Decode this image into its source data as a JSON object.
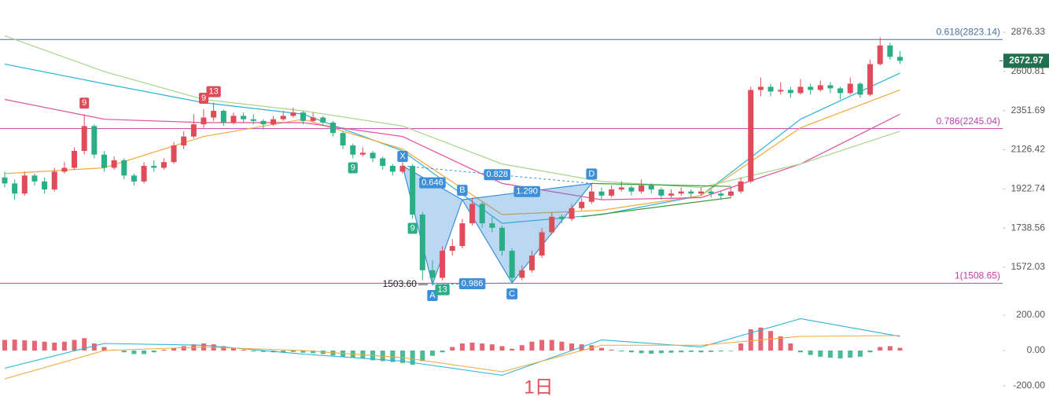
{
  "watermark": "1日",
  "chart_data": [
    {
      "type": "candlestick",
      "log_scale": true,
      "ylim": [
        1421,
        3125
      ],
      "yticks": [
        2876.33,
        2600.81,
        2351.69,
        2126.42,
        1922.74,
        1738.56,
        1572.03
      ],
      "up_color": "#e04b5a",
      "down_color": "#2aae86",
      "candles": [
        [
          1980,
          2010,
          1930,
          1950
        ],
        [
          1950,
          1970,
          1870,
          1900
        ],
        [
          1900,
          2010,
          1890,
          1990
        ],
        [
          1990,
          2000,
          1940,
          1960
        ],
        [
          1960,
          1980,
          1900,
          1920
        ],
        [
          1920,
          2030,
          1910,
          2010
        ],
        [
          2010,
          2060,
          2000,
          2030
        ],
        [
          2030,
          2140,
          2020,
          2120
        ],
        [
          2120,
          2330,
          2100,
          2260
        ],
        [
          2260,
          2270,
          2080,
          2100
        ],
        [
          2100,
          2120,
          2010,
          2030
        ],
        [
          2030,
          2090,
          2020,
          2070
        ],
        [
          2070,
          2080,
          1970,
          1990
        ],
        [
          1990,
          2000,
          1940,
          1960
        ],
        [
          1960,
          2060,
          1950,
          2040
        ],
        [
          2040,
          2070,
          2010,
          2030
        ],
        [
          2030,
          2080,
          2020,
          2060
        ],
        [
          2060,
          2170,
          2050,
          2150
        ],
        [
          2150,
          2230,
          2130,
          2200
        ],
        [
          2200,
          2330,
          2190,
          2270
        ],
        [
          2270,
          2360,
          2250,
          2310
        ],
        [
          2310,
          2400,
          2290,
          2350
        ],
        [
          2350,
          2360,
          2260,
          2280
        ],
        [
          2280,
          2340,
          2270,
          2320
        ],
        [
          2320,
          2340,
          2280,
          2300
        ],
        [
          2300,
          2330,
          2270,
          2290
        ],
        [
          2290,
          2300,
          2240,
          2270
        ],
        [
          2270,
          2320,
          2260,
          2300
        ],
        [
          2300,
          2350,
          2290,
          2320
        ],
        [
          2320,
          2370,
          2310,
          2340
        ],
        [
          2340,
          2350,
          2270,
          2290
        ],
        [
          2290,
          2340,
          2280,
          2310
        ],
        [
          2310,
          2320,
          2260,
          2280
        ],
        [
          2280,
          2290,
          2200,
          2220
        ],
        [
          2220,
          2230,
          2130,
          2150
        ],
        [
          2150,
          2160,
          2080,
          2100
        ],
        [
          2100,
          2140,
          2090,
          2110
        ],
        [
          2110,
          2120,
          2060,
          2080
        ],
        [
          2080,
          2090,
          2020,
          2040
        ],
        [
          2040,
          2050,
          1990,
          2010
        ],
        [
          2010,
          2060,
          2000,
          2040
        ],
        [
          2040,
          2050,
          1780,
          1800
        ],
        [
          1800,
          1810,
          1520,
          1560
        ],
        [
          1560,
          1600,
          1503.6,
          1530
        ],
        [
          1530,
          1660,
          1520,
          1640
        ],
        [
          1640,
          1690,
          1620,
          1660
        ],
        [
          1660,
          1780,
          1650,
          1760
        ],
        [
          1760,
          1880,
          1750,
          1850
        ],
        [
          1850,
          1860,
          1740,
          1760
        ],
        [
          1760,
          1790,
          1720,
          1740
        ],
        [
          1740,
          1750,
          1620,
          1640
        ],
        [
          1640,
          1650,
          1510,
          1530
        ],
        [
          1530,
          1580,
          1520,
          1560
        ],
        [
          1560,
          1640,
          1550,
          1620
        ],
        [
          1620,
          1740,
          1610,
          1720
        ],
        [
          1720,
          1810,
          1710,
          1790
        ],
        [
          1790,
          1800,
          1760,
          1780
        ],
        [
          1780,
          1850,
          1770,
          1830
        ],
        [
          1830,
          1880,
          1820,
          1860
        ],
        [
          1860,
          1950,
          1850,
          1910
        ],
        [
          1910,
          1930,
          1870,
          1890
        ],
        [
          1890,
          1940,
          1880,
          1920
        ],
        [
          1920,
          1960,
          1910,
          1930
        ],
        [
          1930,
          1940,
          1890,
          1910
        ],
        [
          1910,
          1970,
          1900,
          1940
        ],
        [
          1940,
          1950,
          1900,
          1920
        ],
        [
          1920,
          1930,
          1870,
          1890
        ],
        [
          1890,
          1920,
          1880,
          1900
        ],
        [
          1900,
          1930,
          1890,
          1910
        ],
        [
          1910,
          1920,
          1880,
          1900
        ],
        [
          1900,
          1930,
          1890,
          1910
        ],
        [
          1910,
          1920,
          1880,
          1900
        ],
        [
          1900,
          1910,
          1870,
          1890
        ],
        [
          1890,
          1930,
          1880,
          1910
        ],
        [
          1910,
          1980,
          1900,
          1960
        ],
        [
          1960,
          2500,
          1950,
          2480
        ],
        [
          2480,
          2560,
          2440,
          2500
        ],
        [
          2500,
          2520,
          2440,
          2470
        ],
        [
          2470,
          2530,
          2450,
          2480
        ],
        [
          2480,
          2500,
          2430,
          2460
        ],
        [
          2460,
          2550,
          2450,
          2500
        ],
        [
          2500,
          2520,
          2450,
          2480
        ],
        [
          2480,
          2540,
          2470,
          2510
        ],
        [
          2510,
          2530,
          2460,
          2490
        ],
        [
          2490,
          2500,
          2420,
          2460
        ],
        [
          2460,
          2560,
          2450,
          2520
        ],
        [
          2520,
          2530,
          2430,
          2450
        ],
        [
          2450,
          2680,
          2440,
          2650
        ],
        [
          2650,
          2840,
          2640,
          2780
        ],
        [
          2780,
          2800,
          2680,
          2700
        ],
        [
          2700,
          2740,
          2650,
          2672.97
        ]
      ],
      "moving_averages": {
        "x": [
          0,
          10,
          20,
          30,
          40,
          50,
          60,
          70,
          80,
          90
        ],
        "series": [
          {
            "color": "#2bb3d6",
            "values": [
              2650,
              2520,
              2400,
              2330,
              2120,
              1760,
              1800,
              1890,
              2300,
              2590
            ]
          },
          {
            "color": "#f2a93b",
            "values": [
              2000,
              2030,
              2200,
              2300,
              2130,
              1800,
              1820,
              1890,
              2250,
              2480
            ]
          },
          {
            "color": "#e0529c",
            "values": [
              2420,
              2300,
              2280,
              2280,
              2200,
              1950,
              1870,
              1880,
              2050,
              2330
            ]
          },
          {
            "color": "#a8d58c",
            "values": [
              2850,
              2600,
              2420,
              2350,
              2260,
              2050,
              1960,
              1930,
              2050,
              2230
            ]
          }
        ]
      },
      "trendlines": [
        {
          "color": "#3a9a3a",
          "x": [
            59,
            73
          ],
          "values": [
            1950,
            1935
          ]
        },
        {
          "color": "#3a9a3a",
          "x": [
            58,
            73
          ],
          "values": [
            1790,
            1880
          ]
        }
      ],
      "fib_levels": [
        {
          "value": 2823.14,
          "label": "0.618(2823.14)",
          "color": "#4a6fa5"
        },
        {
          "value": 2245.04,
          "label": "0.786(2245.04)",
          "color": "#c040b0"
        },
        {
          "value": 1508.65,
          "label": "1(1508.65)",
          "color": "#c040b0"
        }
      ],
      "td_counts": [
        {
          "index": 8,
          "label": "9",
          "position": "above",
          "color": "#e04b5a"
        },
        {
          "index": 20,
          "label": "9",
          "position": "above",
          "color": "#e04b5a"
        },
        {
          "index": 21,
          "label": "13",
          "position": "above",
          "color": "#e04b5a"
        },
        {
          "index": 35,
          "label": "9",
          "position": "below",
          "color": "#2aae86"
        },
        {
          "index": 41,
          "label": "9",
          "position": "below",
          "color": "#2aae86"
        },
        {
          "index": 44,
          "label": "13",
          "position": "below",
          "color": "#2aae86"
        }
      ],
      "harmonic": {
        "color": "#3d8fd9",
        "points": [
          {
            "label": "X",
            "index": 40,
            "price": 2040
          },
          {
            "label": "A",
            "index": 43,
            "price": 1503.6
          },
          {
            "label": "B",
            "index": 46,
            "price": 1870
          },
          {
            "label": "C",
            "index": 51,
            "price": 1510
          },
          {
            "label": "D",
            "index": 59,
            "price": 1950
          }
        ],
        "ratios": [
          "0.646",
          "0.828",
          "1.290",
          "0.986"
        ]
      },
      "low_label": {
        "index": 43,
        "value": 1503.6,
        "label": "1503.60"
      },
      "last_price": {
        "value": 2672.97,
        "label": "2672.97",
        "color": "#1f6f50"
      }
    },
    {
      "type": "macd",
      "ylim": [
        -329,
        240
      ],
      "yticks": [
        {
          "value": 200,
          "label": "200.00"
        },
        {
          "value": 0,
          "label": "0.00"
        },
        {
          "value": -200,
          "label": "-200.00"
        }
      ],
      "histogram": [
        60,
        62,
        58,
        55,
        50,
        45,
        50,
        60,
        70,
        40,
        20,
        5,
        -10,
        -20,
        -20,
        -10,
        5,
        15,
        25,
        35,
        40,
        35,
        25,
        15,
        5,
        -5,
        -8,
        -10,
        -12,
        -8,
        -12,
        -15,
        -20,
        -28,
        -35,
        -40,
        -45,
        -55,
        -60,
        -65,
        -70,
        -80,
        -60,
        -30,
        -10,
        20,
        40,
        45,
        40,
        35,
        25,
        10,
        30,
        50,
        60,
        60,
        50,
        40,
        35,
        30,
        15,
        5,
        -5,
        -10,
        -15,
        -18,
        -15,
        -12,
        -10,
        -8,
        -10,
        -8,
        -5,
        -3,
        40,
        120,
        130,
        110,
        80,
        40,
        -10,
        -25,
        -35,
        -40,
        -45,
        -40,
        -35,
        -10,
        20,
        25,
        15
      ],
      "x": [
        0,
        10,
        20,
        30,
        40,
        50,
        60,
        70,
        80,
        90
      ],
      "series": [
        {
          "color": "#2bb3d6",
          "values": [
            -100,
            40,
            30,
            -20,
            -60,
            -140,
            60,
            20,
            180,
            80
          ]
        },
        {
          "color": "#f2a93b",
          "values": [
            -160,
            0,
            20,
            0,
            -40,
            -120,
            30,
            30,
            80,
            85
          ]
        }
      ]
    }
  ]
}
